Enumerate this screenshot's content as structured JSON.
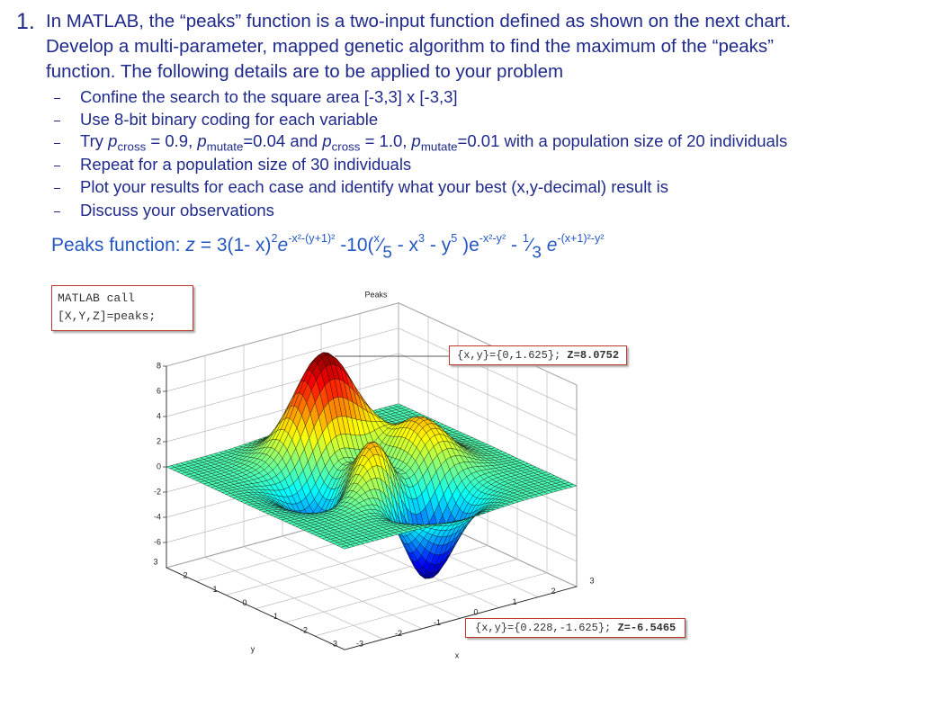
{
  "question": {
    "number": "1.",
    "lines": [
      "In MATLAB, the “peaks” function is a two-input function defined as shown on the next chart.",
      "Develop a multi-parameter, mapped genetic algorithm to find the maximum of the “peaks”",
      "function.  The following details are to be applied to your problem"
    ],
    "bullets": [
      [
        "Confine the search to the square area [-3,3] x [-3,3]"
      ],
      [
        "Use 8-bit binary coding for each variable"
      ],
      [
        "Try ",
        "p",
        "cross",
        " = 0.9, ",
        "p",
        "mutate",
        "=0.04 and ",
        "p",
        "cross",
        " = 1.0, ",
        "p",
        "mutate",
        "=0.01 with a population size of 20 individuals"
      ],
      [
        "Repeat for a population size of 30 individuals"
      ],
      [
        "Plot your results for each case and identify what your best (x,y-decimal) result is"
      ],
      [
        "Discuss your observations"
      ]
    ]
  },
  "formula": [
    "Peaks function: ",
    "z",
    " = 3(1- x)",
    "2",
    "e",
    "-x²-(y+1)²",
    " -10(",
    "x",
    "⁄",
    "5",
    " - x",
    "3",
    " - y",
    "5",
    " )e",
    "-x²-y²",
    " - ",
    "1",
    "⁄",
    "3",
    " e",
    "-(x+1)²-y²"
  ],
  "figure": {
    "title": "Peaks",
    "code_box": [
      "MATLAB call",
      "[X,Y,Z]=peaks;"
    ],
    "annotations": [
      [
        "{x,y}={0,1.625}; ",
        "Z=8.0752"
      ],
      [
        "{x,y}={0.228,-1.625}; ",
        "Z=-6.5465"
      ]
    ],
    "x_label": "x",
    "y_label": "y",
    "xlim": [
      -3,
      3
    ],
    "ylim": [
      -3,
      3
    ],
    "zlim": [
      -8,
      8
    ],
    "xticks": [
      -3,
      -2,
      -1,
      0,
      1,
      2,
      3
    ],
    "yticks": [
      -3,
      -2,
      -1,
      0,
      1,
      2,
      3
    ],
    "zticks": [
      8,
      6,
      4,
      2,
      0,
      -2,
      -4,
      -6
    ]
  }
}
